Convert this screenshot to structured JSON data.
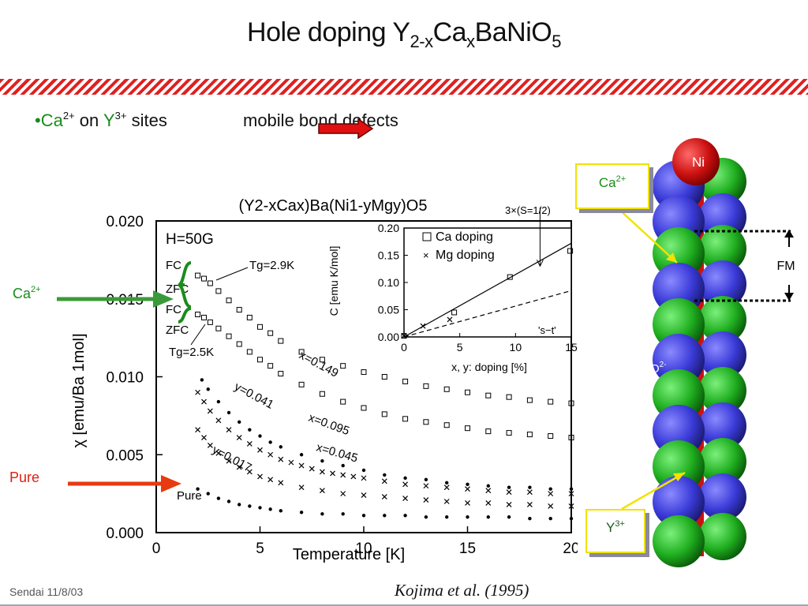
{
  "slide": {
    "title_main": "Hole doping Y",
    "title_sub1": "2-x",
    "title_mid": "Ca",
    "title_sub2": "x",
    "title_end": "BaNiO",
    "title_sub3": "5",
    "bullet": {
      "mark": "•",
      "ca": "Ca",
      "ca_charge": "2+",
      "on": " on ",
      "y": "Y",
      "y_charge": "3+",
      "sites": " sites"
    },
    "effect_text": "mobile bond defects",
    "label_ca": "Ca",
    "label_ca_charge": "2+",
    "label_pure": "Pure",
    "footer": "Sendai 11/8/03",
    "citation": "Kojima et al. (1995)"
  },
  "structure": {
    "ni_label": "Ni",
    "o_label": "O",
    "o_charge": "2-",
    "ca_label": "Ca",
    "ca_charge": "2+",
    "y_label": "Y",
    "y_charge": "3+",
    "fm_label": "FM"
  },
  "colors": {
    "ca_label": "#1a8c1a",
    "pure_label": "#e02010",
    "ca_arrow": "#3a9a3a",
    "pure_arrow": "#e83a10",
    "hatch": "#e02020",
    "callout_border": "#f2e200",
    "ni": "#cc1111",
    "ca_sphere": "#1fae1f",
    "y_sphere": "#1f8a1f",
    "o_sphere": "#3a3ad8"
  },
  "chart_data": {
    "type": "scatter",
    "title": "(Y2-xCax)Ba(Ni1-yMgy)O5",
    "field_label": "H=50G",
    "xlabel": "Temperature [K]",
    "ylabel": "χ [emu/Ba 1mol]",
    "xlim": [
      0,
      20
    ],
    "ylim": [
      0,
      0.02
    ],
    "xticks": [
      "0",
      "5",
      "10",
      "15",
      "20"
    ],
    "yticks": [
      "0.000",
      "0.005",
      "0.010",
      "0.015",
      "0.020"
    ],
    "annotations": [
      "FC",
      "ZFC",
      "FC",
      "ZFC",
      "Tg=2.9K",
      "Tg=2.5K",
      "x=0.149",
      "y=0.041",
      "x=0.095",
      "x=0.045",
      "y=0.017",
      "Pure"
    ],
    "series": [
      {
        "name": "x=0.149",
        "marker": "square",
        "x": [
          2.0,
          2.3,
          2.6,
          3.0,
          3.5,
          4.0,
          4.5,
          5.0,
          5.5,
          6.0,
          7.0,
          8.0,
          9.0,
          10.0,
          11.0,
          12.0,
          13.0,
          14.0,
          15.0,
          16.0,
          17.0,
          18.0,
          19.0,
          20.0
        ],
        "y": [
          0.0165,
          0.0163,
          0.016,
          0.0155,
          0.0149,
          0.0143,
          0.0138,
          0.0132,
          0.0128,
          0.0123,
          0.0116,
          0.0111,
          0.0107,
          0.0103,
          0.01,
          0.0097,
          0.0094,
          0.0092,
          0.009,
          0.0088,
          0.0087,
          0.0085,
          0.0084,
          0.0083
        ]
      },
      {
        "name": "x=0.095",
        "marker": "square",
        "x": [
          2.0,
          2.3,
          2.6,
          3.0,
          3.5,
          4.0,
          4.5,
          5.0,
          5.5,
          6.0,
          7.0,
          8.0,
          9.0,
          10.0,
          11.0,
          12.0,
          13.0,
          14.0,
          15.0,
          16.0,
          17.0,
          18.0,
          19.0,
          20.0
        ],
        "y": [
          0.014,
          0.0138,
          0.0135,
          0.0131,
          0.0126,
          0.0121,
          0.0116,
          0.0111,
          0.0107,
          0.0102,
          0.0095,
          0.0089,
          0.0084,
          0.008,
          0.0076,
          0.0073,
          0.0071,
          0.0069,
          0.0067,
          0.0065,
          0.0064,
          0.0063,
          0.0062,
          0.0061
        ]
      },
      {
        "name": "x=0.045",
        "marker": "dot",
        "x": [
          2.2,
          2.5,
          3.0,
          3.5,
          4.0,
          4.5,
          5.0,
          5.5,
          6.0,
          7.0,
          8.0,
          9.0,
          10.0,
          11.0,
          12.0,
          13.0,
          14.0,
          15.0,
          16.0,
          17.0,
          18.0,
          19.0,
          20.0
        ],
        "y": [
          0.0098,
          0.0092,
          0.0084,
          0.0077,
          0.0071,
          0.0066,
          0.0062,
          0.0058,
          0.0055,
          0.005,
          0.0046,
          0.0043,
          0.004,
          0.0037,
          0.0035,
          0.0034,
          0.0032,
          0.0031,
          0.003,
          0.0029,
          0.0029,
          0.0028,
          0.0028
        ]
      },
      {
        "name": "y=0.041",
        "marker": "cross",
        "x": [
          2.0,
          2.3,
          2.6,
          3.0,
          3.5,
          4.0,
          4.5,
          5.0,
          5.5,
          6.0,
          6.5,
          7.0,
          7.5,
          8.0,
          8.5,
          9.0,
          9.5,
          10.0,
          11.0,
          12.0,
          13.0,
          14.0,
          15.0,
          16.0,
          17.0,
          18.0,
          19.0,
          20.0
        ],
        "y": [
          0.009,
          0.0084,
          0.0078,
          0.0072,
          0.0066,
          0.0061,
          0.0057,
          0.0053,
          0.005,
          0.0047,
          0.0045,
          0.0043,
          0.0041,
          0.0039,
          0.0038,
          0.0037,
          0.0036,
          0.0035,
          0.0033,
          0.0031,
          0.003,
          0.0029,
          0.0028,
          0.0027,
          0.0026,
          0.0026,
          0.0025,
          0.0025
        ]
      },
      {
        "name": "y=0.017",
        "marker": "cross",
        "x": [
          2.0,
          2.3,
          2.6,
          3.0,
          3.5,
          4.0,
          4.5,
          5.0,
          5.5,
          6.0,
          7.0,
          8.0,
          9.0,
          10.0,
          11.0,
          12.0,
          13.0,
          14.0,
          15.0,
          16.0,
          17.0,
          18.0,
          19.0,
          20.0
        ],
        "y": [
          0.0066,
          0.0061,
          0.0056,
          0.0051,
          0.0046,
          0.0042,
          0.0039,
          0.0036,
          0.0034,
          0.0032,
          0.0029,
          0.0027,
          0.0025,
          0.0024,
          0.0023,
          0.0022,
          0.0021,
          0.002,
          0.0019,
          0.0019,
          0.0018,
          0.0018,
          0.0017,
          0.0017
        ]
      },
      {
        "name": "Pure",
        "marker": "dot",
        "x": [
          2.0,
          2.5,
          3.0,
          3.5,
          4.0,
          4.5,
          5.0,
          5.5,
          6.0,
          7.0,
          8.0,
          9.0,
          10.0,
          11.0,
          12.0,
          13.0,
          14.0,
          15.0,
          16.0,
          17.0,
          18.0,
          19.0,
          20.0
        ],
        "y": [
          0.0028,
          0.0025,
          0.0022,
          0.002,
          0.0018,
          0.0017,
          0.0016,
          0.0015,
          0.0014,
          0.0013,
          0.0012,
          0.0012,
          0.0011,
          0.0011,
          0.0011,
          0.001,
          0.001,
          0.001,
          0.001,
          0.001,
          0.0009,
          0.0009,
          0.0009
        ]
      }
    ],
    "inset": {
      "type": "scatter",
      "xlabel": "x, y: doping [%]",
      "ylabel": "C [emu K/mol]",
      "xlim": [
        0,
        15
      ],
      "ylim": [
        0,
        0.2
      ],
      "xticks": [
        "0",
        "5",
        "10",
        "15"
      ],
      "yticks": [
        "0.00",
        "0.05",
        "0.10",
        "0.15",
        "0.20"
      ],
      "legend": [
        "Ca doping",
        "Mg doping"
      ],
      "annotations": [
        "3×(S=1/2)",
        "'s−t'"
      ],
      "series": [
        {
          "name": "Ca doping",
          "marker": "square",
          "x": [
            0,
            4.5,
            9.5,
            14.9
          ],
          "y": [
            0.002,
            0.045,
            0.11,
            0.158
          ]
        },
        {
          "name": "Mg doping",
          "marker": "cross",
          "x": [
            0,
            1.7,
            4.1
          ],
          "y": [
            0.002,
            0.02,
            0.032
          ]
        }
      ]
    }
  }
}
